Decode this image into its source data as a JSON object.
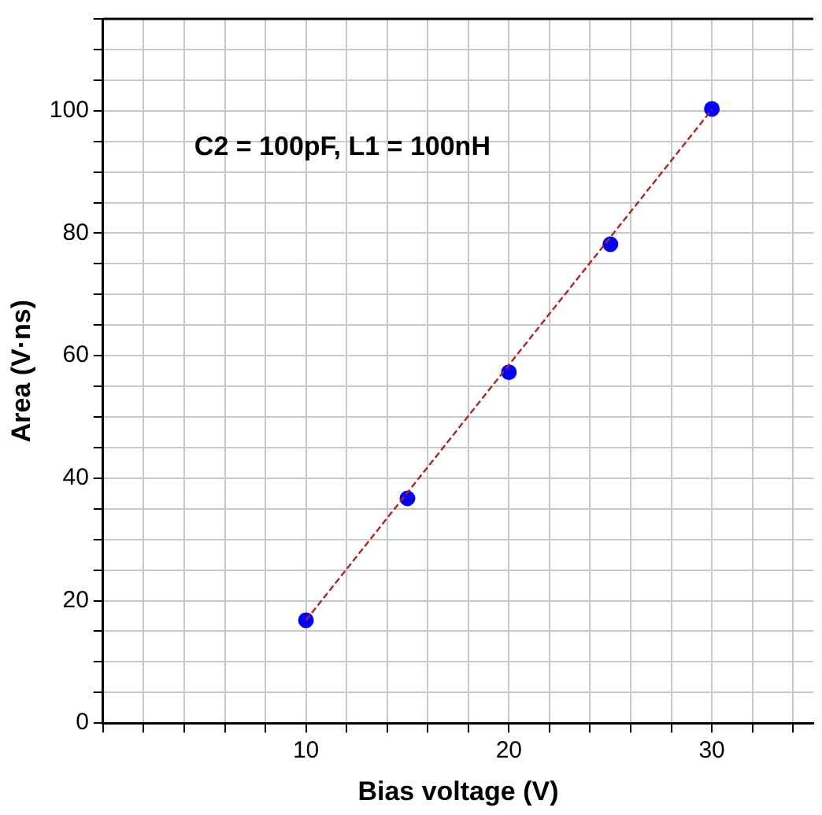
{
  "chart_data": {
    "type": "scatter",
    "xlabel": "Bias voltage (V)",
    "ylabel": "Area (V·ns)",
    "annotations": [
      "C2 = 100pF, L1 = 100nH"
    ],
    "series": [
      {
        "color": "#0000ff",
        "x": [
          10,
          15,
          20,
          25,
          30
        ],
        "values": [
          16.8,
          36.7,
          57.3,
          78.2,
          100.3
        ],
        "marker": "circle"
      },
      {
        "type": "line",
        "color": "#b22222",
        "x": [
          10,
          30
        ],
        "values": [
          16.8,
          100.2
        ],
        "line_style": "dashed",
        "marker": "none"
      }
    ],
    "xlim": [
      0,
      35
    ],
    "ylim": [
      0,
      115
    ],
    "xticks": [
      {
        "value": 0,
        "label": null
      },
      {
        "value": 2,
        "label": null
      },
      {
        "value": 4,
        "label": null
      },
      {
        "value": 6,
        "label": null
      },
      {
        "value": 8,
        "label": null
      },
      10,
      {
        "value": 12,
        "label": null
      },
      {
        "value": 14,
        "label": null
      },
      {
        "value": 16,
        "label": null
      },
      {
        "value": 18,
        "label": null
      },
      20,
      {
        "value": 22,
        "label": null
      },
      {
        "value": 24,
        "label": null
      },
      {
        "value": 26,
        "label": null
      },
      {
        "value": 28,
        "label": null
      },
      30,
      {
        "value": 32,
        "label": null
      },
      {
        "value": 34,
        "label": null
      }
    ],
    "yticks": [
      0,
      {
        "value": 5,
        "label": null
      },
      {
        "value": 10,
        "label": null
      },
      {
        "value": 15,
        "label": null
      },
      20,
      {
        "value": 25,
        "label": null
      },
      {
        "value": 30,
        "label": null
      },
      {
        "value": 35,
        "label": null
      },
      40,
      {
        "value": 45,
        "label": null
      },
      {
        "value": 50,
        "label": null
      },
      {
        "value": 55,
        "label": null
      },
      60,
      {
        "value": 65,
        "label": null
      },
      {
        "value": 70,
        "label": null
      },
      {
        "value": 75,
        "label": null
      },
      80,
      {
        "value": 85,
        "label": null
      },
      {
        "value": 90,
        "label": null
      },
      {
        "value": 95,
        "label": null
      },
      100,
      {
        "value": 105,
        "label": null
      },
      {
        "value": 110,
        "label": null
      },
      {
        "value": 115,
        "label": null
      }
    ],
    "grid": true,
    "legend": false
  }
}
